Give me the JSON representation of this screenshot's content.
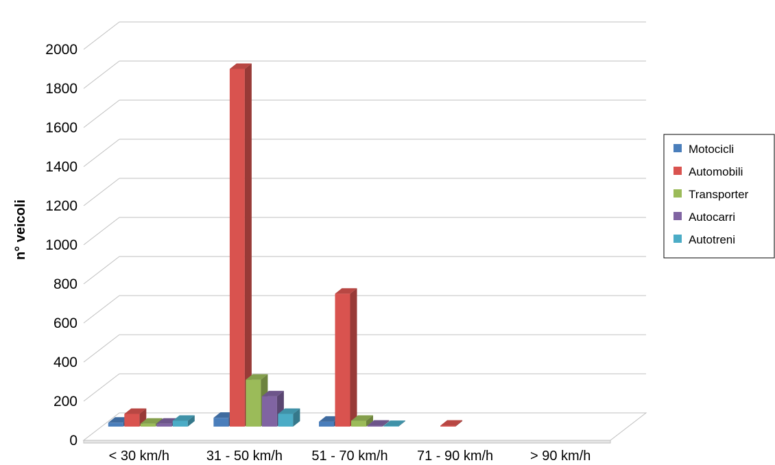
{
  "chart_data": {
    "type": "bar",
    "title": "",
    "xlabel": "",
    "ylabel": "n° veicoli",
    "ylim": [
      0,
      2000
    ],
    "yticks": [
      0,
      200,
      400,
      600,
      800,
      1000,
      1200,
      1400,
      1600,
      1800,
      2000
    ],
    "grid": true,
    "legend_position": "right",
    "categories": [
      "< 30 km/h",
      "31 - 50 km/h",
      "51 - 70 km/h",
      "71 - 90 km/h",
      "> 90 km/h"
    ],
    "series": [
      {
        "name": "Motocicli",
        "color": "#4a7ebb",
        "values": [
          20,
          45,
          25,
          0,
          0
        ]
      },
      {
        "name": "Automobili",
        "color": "#d9534f",
        "values": [
          65,
          1830,
          680,
          5,
          0
        ]
      },
      {
        "name": "Transporter",
        "color": "#9bbb59",
        "values": [
          15,
          240,
          30,
          0,
          0
        ]
      },
      {
        "name": "Autocarri",
        "color": "#8064a2",
        "values": [
          15,
          155,
          5,
          0,
          0
        ]
      },
      {
        "name": "Autotreni",
        "color": "#4bacc6",
        "values": [
          30,
          65,
          3,
          0,
          0
        ]
      }
    ]
  }
}
